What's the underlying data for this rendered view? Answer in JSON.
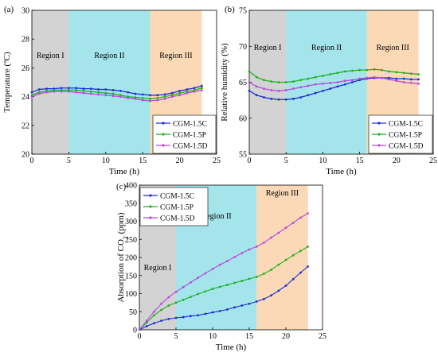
{
  "chart_data": [
    {
      "type": "line",
      "panel_label": "(a)",
      "xlabel": "Time (h)",
      "ylabel": "Temperature (ºC)",
      "xlim": [
        0,
        25
      ],
      "ylim": [
        20,
        30
      ],
      "xticks": [
        "0",
        "5",
        "10",
        "15",
        "20",
        "25"
      ],
      "yticks": [
        "20",
        "22",
        "24",
        "26",
        "28",
        "30"
      ],
      "regions": [
        {
          "label": "Region I",
          "x0": 0,
          "x1": 5,
          "color": "#d3d3d3"
        },
        {
          "label": "Region II",
          "x0": 5,
          "x1": 16,
          "color": "#a3e5ea"
        },
        {
          "label": "Region III",
          "x0": 16,
          "x1": 23,
          "color": "#fcd9b6"
        }
      ],
      "legend_position": "bottom-right",
      "x": [
        0,
        1,
        2,
        3,
        4,
        5,
        6,
        7,
        8,
        9,
        10,
        11,
        12,
        13,
        14,
        15,
        16,
        17,
        18,
        19,
        20,
        21,
        22,
        23
      ],
      "series": [
        {
          "name": "CGM-1.5C",
          "color": "#1f2fd6",
          "values": [
            24.3,
            24.5,
            24.55,
            24.55,
            24.6,
            24.6,
            24.6,
            24.55,
            24.55,
            24.5,
            24.5,
            24.45,
            24.4,
            24.3,
            24.2,
            24.15,
            24.1,
            24.1,
            24.15,
            24.25,
            24.4,
            24.5,
            24.6,
            24.75
          ]
        },
        {
          "name": "CGM-1.5P",
          "color": "#22b022",
          "values": [
            24.1,
            24.3,
            24.4,
            24.45,
            24.45,
            24.45,
            24.45,
            24.4,
            24.35,
            24.3,
            24.25,
            24.2,
            24.1,
            24.0,
            23.95,
            23.9,
            23.85,
            23.9,
            24.0,
            24.1,
            24.25,
            24.35,
            24.45,
            24.6
          ]
        },
        {
          "name": "CGM-1.5D",
          "color": "#b84bdc",
          "values": [
            24.0,
            24.2,
            24.3,
            24.35,
            24.35,
            24.35,
            24.3,
            24.25,
            24.2,
            24.15,
            24.1,
            24.05,
            24.0,
            23.9,
            23.85,
            23.75,
            23.7,
            23.75,
            23.85,
            24.0,
            24.1,
            24.25,
            24.35,
            24.45
          ]
        }
      ]
    },
    {
      "type": "line",
      "panel_label": "(b)",
      "xlabel": "Time (h)",
      "ylabel": "Relative humidity (%)",
      "xlim": [
        0,
        25
      ],
      "ylim": [
        55,
        75
      ],
      "xticks": [
        "0",
        "5",
        "10",
        "15",
        "20",
        "25"
      ],
      "yticks": [
        "55",
        "60",
        "65",
        "70",
        "75"
      ],
      "regions": [
        {
          "label": "Region I",
          "x0": 0,
          "x1": 5,
          "color": "#d3d3d3"
        },
        {
          "label": "Region II",
          "x0": 5,
          "x1": 16,
          "color": "#a3e5ea"
        },
        {
          "label": "Region III",
          "x0": 16,
          "x1": 23,
          "color": "#fcd9b6"
        }
      ],
      "legend_position": "bottom-right",
      "x": [
        0,
        1,
        2,
        3,
        4,
        5,
        6,
        7,
        8,
        9,
        10,
        11,
        12,
        13,
        14,
        15,
        16,
        17,
        18,
        19,
        20,
        21,
        22,
        23
      ],
      "series": [
        {
          "name": "CGM-1.5C",
          "color": "#1f2fd6",
          "values": [
            63.8,
            63.2,
            62.9,
            62.7,
            62.6,
            62.6,
            62.7,
            62.9,
            63.2,
            63.5,
            63.8,
            64.1,
            64.4,
            64.7,
            65.0,
            65.3,
            65.5,
            65.6,
            65.6,
            65.6,
            65.5,
            65.5,
            65.4,
            65.4
          ]
        },
        {
          "name": "CGM-1.5P",
          "color": "#22b022",
          "values": [
            66.5,
            65.7,
            65.3,
            65.1,
            65.0,
            65.0,
            65.1,
            65.3,
            65.5,
            65.7,
            65.9,
            66.1,
            66.3,
            66.5,
            66.6,
            66.7,
            66.7,
            66.8,
            66.7,
            66.5,
            66.4,
            66.3,
            66.2,
            66.1
          ]
        },
        {
          "name": "CGM-1.5D",
          "color": "#b84bdc",
          "values": [
            65.0,
            64.4,
            64.1,
            63.9,
            63.8,
            63.9,
            64.1,
            64.3,
            64.5,
            64.7,
            64.8,
            64.9,
            65.0,
            65.2,
            65.3,
            65.5,
            65.6,
            65.7,
            65.6,
            65.4,
            65.2,
            65.0,
            64.9,
            64.8
          ]
        }
      ]
    },
    {
      "type": "scatter",
      "panel_label": "(c)",
      "xlabel": "Time (h)",
      "ylabel_main": "Absorption of CO",
      "ylabel_sub": "2",
      "ylabel_unit": " (ppm)",
      "xlim": [
        0,
        25
      ],
      "ylim": [
        0,
        400
      ],
      "xticks": [
        "0",
        "5",
        "10",
        "15",
        "20",
        "25"
      ],
      "yticks": [
        "0",
        "50",
        "100",
        "150",
        "200",
        "250",
        "300",
        "350",
        "400"
      ],
      "regions": [
        {
          "label": "Region I",
          "x0": 0,
          "x1": 5,
          "color": "#d3d3d3"
        },
        {
          "label": "Region II",
          "x0": 5,
          "x1": 16,
          "color": "#a3e5ea"
        },
        {
          "label": "Region III",
          "x0": 16,
          "x1": 23,
          "color": "#fcd9b6"
        }
      ],
      "legend_position": "top-left",
      "x": [
        0,
        1,
        2,
        3,
        4,
        5,
        6,
        7,
        8,
        9,
        10,
        11,
        12,
        13,
        14,
        15,
        16,
        17,
        18,
        19,
        20,
        21,
        22,
        23
      ],
      "series": [
        {
          "name": "CGM-1.5C",
          "color": "#1f2fd6",
          "values": [
            0,
            10,
            18,
            25,
            30,
            33,
            35,
            38,
            40,
            44,
            48,
            52,
            56,
            62,
            67,
            72,
            78,
            85,
            95,
            108,
            122,
            140,
            158,
            175
          ]
        },
        {
          "name": "CGM-1.5P",
          "color": "#22b022",
          "values": [
            0,
            20,
            40,
            55,
            67,
            75,
            83,
            91,
            99,
            106,
            113,
            119,
            124,
            130,
            135,
            141,
            146,
            155,
            166,
            180,
            193,
            206,
            218,
            230
          ]
        },
        {
          "name": "CGM-1.5D",
          "color": "#b84bdc",
          "values": [
            0,
            25,
            50,
            72,
            90,
            105,
            118,
            131,
            144,
            156,
            168,
            180,
            190,
            201,
            212,
            222,
            230,
            241,
            255,
            268,
            282,
            296,
            310,
            322
          ]
        }
      ]
    }
  ]
}
